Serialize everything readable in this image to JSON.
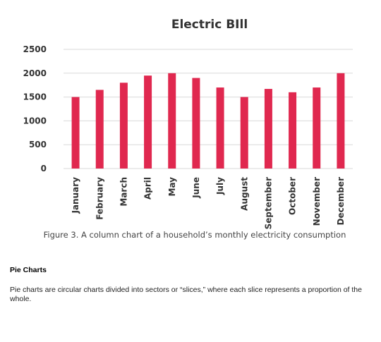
{
  "chart_data": {
    "type": "bar",
    "title": "Electric BIll",
    "categories": [
      "January",
      "February",
      "March",
      "April",
      "May",
      "June",
      "July",
      "August",
      "September",
      "October",
      "November",
      "December"
    ],
    "values": [
      1500,
      1650,
      1800,
      1950,
      2000,
      1900,
      1700,
      1500,
      1670,
      1600,
      1700,
      2000
    ],
    "ylim": [
      0,
      2500
    ],
    "yticks": [
      0,
      500,
      1000,
      1500,
      2000,
      2500
    ],
    "xlabel": "",
    "ylabel": "",
    "grid": true,
    "bar_color": "#e0284f",
    "caption": "Figure 3. A column chart of a household’s monthly electricity consumption"
  },
  "text_section": {
    "heading": "Pie Charts",
    "body": "Pie charts are circular charts divided into sectors or “slices,” where each slice represents a proportion of the whole."
  }
}
